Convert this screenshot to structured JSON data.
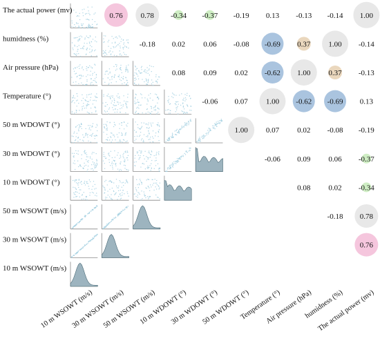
{
  "chart_data": {
    "type": "pair-matrix",
    "variables": [
      "10 m WSOWT (m/s)",
      "30 m WSOWT (m/s)",
      "50 m WSOWT (m/s)",
      "10 m WDOWT (°)",
      "30 m WDOWT (°)",
      "50 m WDOWT (°)",
      "Temperature (°)",
      "Air pressure (hPa)",
      "humidness (%)",
      "The actual power (mv)"
    ],
    "row_labels": [
      "The actual power (mv)",
      "humidness (%)",
      "Air pressure (hPa)",
      "Temperature (°)",
      "50 m WDOWT (°)",
      "30 m WDOWT (°)",
      "10 m WDOWT (°)",
      "50 m WSOWT (m/s)",
      "30 m WSOWT (m/s)",
      "10 m WSOWT (m/s)"
    ],
    "correlations": [
      [
        {
          "col": 1,
          "value": "0.76"
        },
        {
          "col": 2,
          "value": "0.78"
        },
        {
          "col": 3,
          "value": "-0.34"
        },
        {
          "col": 4,
          "value": "-0.37"
        },
        {
          "col": 5,
          "value": "-0.19"
        },
        {
          "col": 6,
          "value": "0.13"
        },
        {
          "col": 7,
          "value": "-0.13"
        },
        {
          "col": 8,
          "value": "-0.14"
        },
        {
          "col": 9,
          "value": "1.00"
        }
      ],
      [
        {
          "col": 2,
          "value": "-0.18"
        },
        {
          "col": 3,
          "value": "0.02"
        },
        {
          "col": 4,
          "value": "0.06"
        },
        {
          "col": 5,
          "value": "-0.08"
        },
        {
          "col": 6,
          "value": "-0.69"
        },
        {
          "col": 7,
          "value": "0.37"
        },
        {
          "col": 8,
          "value": "1.00"
        },
        {
          "col": 9,
          "value": "-0.14"
        }
      ],
      [
        {
          "col": 3,
          "value": "0.08"
        },
        {
          "col": 4,
          "value": "0.09"
        },
        {
          "col": 5,
          "value": "0.02"
        },
        {
          "col": 6,
          "value": "-0.62"
        },
        {
          "col": 7,
          "value": "1.00"
        },
        {
          "col": 8,
          "value": "0.37"
        },
        {
          "col": 9,
          "value": "-0.13"
        }
      ],
      [
        {
          "col": 4,
          "value": "-0.06"
        },
        {
          "col": 5,
          "value": "0.07"
        },
        {
          "col": 6,
          "value": "1.00"
        },
        {
          "col": 7,
          "value": "-0.62"
        },
        {
          "col": 8,
          "value": "-0.69"
        },
        {
          "col": 9,
          "value": "0.13"
        }
      ],
      [
        {
          "col": 5,
          "value": "1.00"
        },
        {
          "col": 6,
          "value": "0.07"
        },
        {
          "col": 7,
          "value": "0.02"
        },
        {
          "col": 8,
          "value": "-0.08"
        },
        {
          "col": 9,
          "value": "-0.19"
        }
      ],
      [
        {
          "col": 6,
          "value": "-0.06"
        },
        {
          "col": 7,
          "value": "0.09"
        },
        {
          "col": 8,
          "value": "0.06"
        },
        {
          "col": 9,
          "value": "-0.37"
        }
      ],
      [
        {
          "col": 7,
          "value": "0.08"
        },
        {
          "col": 8,
          "value": "0.02"
        },
        {
          "col": 9,
          "value": "-0.34"
        }
      ],
      [
        {
          "col": 8,
          "value": "-0.18"
        },
        {
          "col": 9,
          "value": "0.78"
        }
      ],
      [
        {
          "col": 9,
          "value": "0.76"
        }
      ],
      []
    ],
    "highlight_colors": {
      "one": "#e8e8e8",
      "strong_positive": "#f5c6dd",
      "positive": "#ead7bd",
      "strong_negative": "#aac4df",
      "weak_negative": "#cfeec4"
    },
    "scatter_color": "#a9d3e3",
    "histogram_color": "#9db4bf",
    "histogram_line_color": "#4a6a76",
    "axis_color": "#888888"
  }
}
